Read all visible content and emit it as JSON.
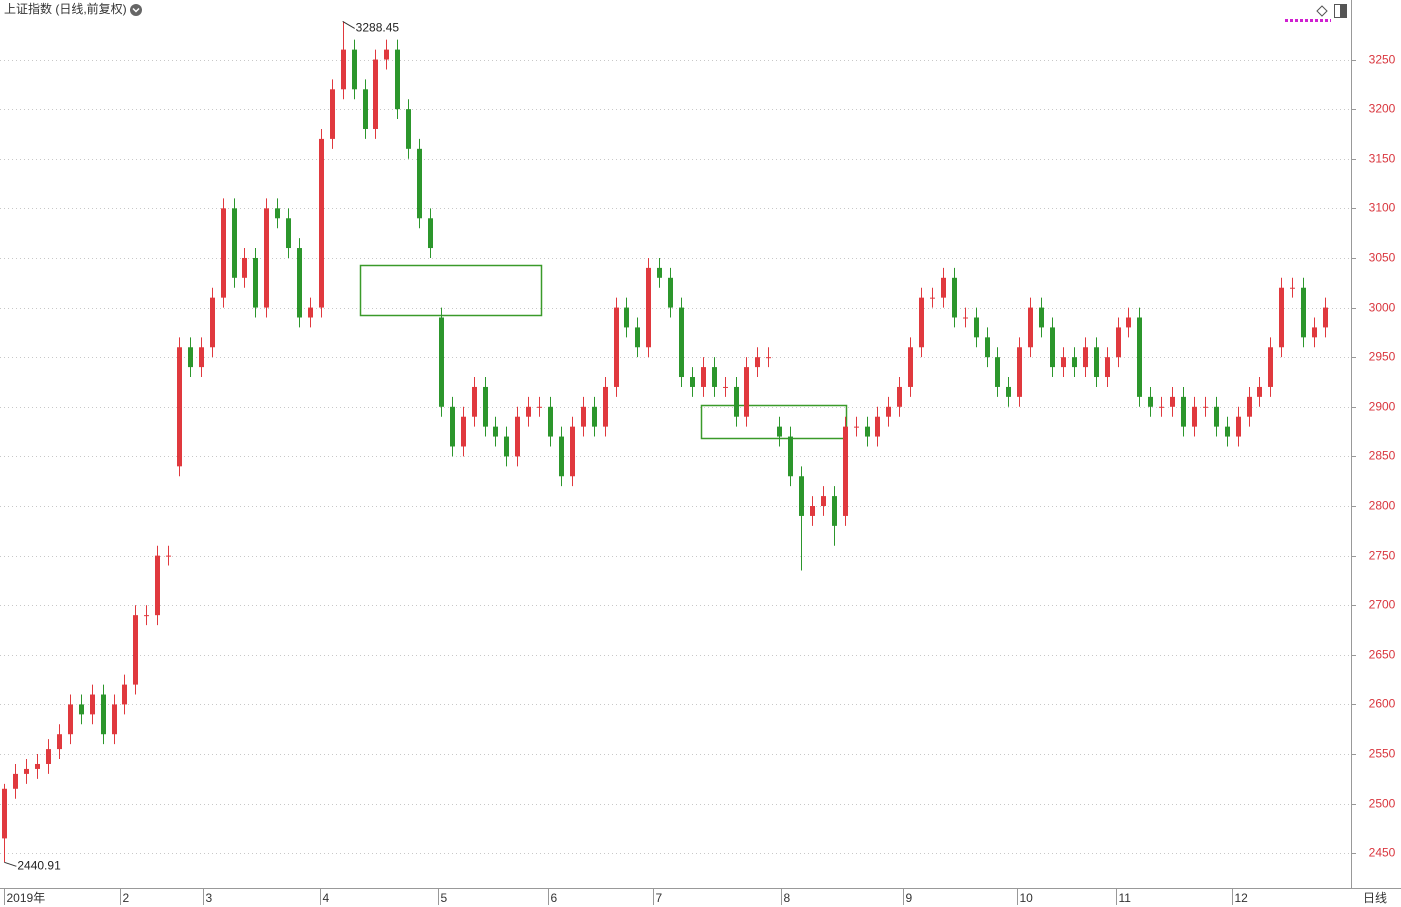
{
  "chart_data": {
    "type": "candlestick",
    "title": "上证指数 (日线,前复权)",
    "period_label": "日线",
    "up_color": "#e0393e",
    "down_color": "#2c962c",
    "axis_label_color": "#d9363e",
    "grid": true,
    "ylim": [
      2415,
      3310
    ],
    "yticks": [
      2450,
      2500,
      2550,
      2600,
      2650,
      2700,
      2750,
      2800,
      2850,
      2900,
      2950,
      3000,
      3050,
      3100,
      3150,
      3200,
      3250
    ],
    "xlim": [
      -0.4,
      123.3
    ],
    "xticks": [
      {
        "value": 0,
        "label": "2019年"
      },
      {
        "value": 10.6,
        "label": "2"
      },
      {
        "value": 18.2,
        "label": "3"
      },
      {
        "value": 28.9,
        "label": "4"
      },
      {
        "value": 39.7,
        "label": "5"
      },
      {
        "value": 49.8,
        "label": "6"
      },
      {
        "value": 59.4,
        "label": "7"
      },
      {
        "value": 71.2,
        "label": "8"
      },
      {
        "value": 82.3,
        "label": "9"
      },
      {
        "value": 92.8,
        "label": "10"
      },
      {
        "value": 101.9,
        "label": "11"
      },
      {
        "value": 112.5,
        "label": "12"
      }
    ],
    "annotations": [
      {
        "value": 3288.45,
        "label": "3288.45"
      },
      {
        "value": 2440.91,
        "label": "2440.91"
      }
    ],
    "open": [
      2465,
      2515,
      2530,
      2535,
      2540,
      2555,
      2570,
      2600,
      2590,
      2610,
      2570,
      2600,
      2620,
      2690,
      2690,
      2750,
      2840,
      2960,
      2940,
      2960,
      3010,
      3100,
      3030,
      3050,
      3000,
      3100,
      3090,
      3060,
      2990,
      3000,
      3170,
      3220,
      3260,
      3220,
      3180,
      3250,
      3260,
      3200,
      3160,
      3090,
      2990,
      2900,
      2860,
      2890,
      2920,
      2880,
      2870,
      2850,
      2890,
      2900,
      2900,
      2870,
      2830,
      2880,
      2900,
      2880,
      2920,
      3000,
      2980,
      2960,
      3040,
      3030,
      3000,
      2930,
      2920,
      2940,
      2920,
      2920,
      2890,
      2940,
      2950,
      2880,
      2870,
      2830,
      2790,
      2800,
      2810,
      2790,
      2880,
      2880,
      2870,
      2890,
      2900,
      2920,
      2960,
      3010,
      3010,
      3030,
      2990,
      2990,
      2970,
      2950,
      2920,
      2910,
      2960,
      3000,
      2980,
      2940,
      2950,
      2940,
      2960,
      2930,
      2950,
      2980,
      2990,
      2910,
      2900,
      2900,
      2910,
      2880,
      2900,
      2900,
      2880,
      2870,
      2890,
      2910,
      2920,
      2960,
      3020,
      3020,
      2970,
      2980
    ],
    "high": [
      2520,
      2540,
      2545,
      2550,
      2565,
      2580,
      2610,
      2610,
      2620,
      2620,
      2610,
      2630,
      2700,
      2700,
      2760,
      2760,
      2970,
      2970,
      2970,
      3020,
      3110,
      3110,
      3060,
      3060,
      3110,
      3110,
      3100,
      3070,
      3010,
      3180,
      3230,
      3288.45,
      3270,
      3230,
      3260,
      3270,
      3270,
      3210,
      3170,
      3100,
      3000,
      2910,
      2900,
      2930,
      2930,
      2890,
      2880,
      2900,
      2910,
      2910,
      2910,
      2880,
      2890,
      2910,
      2910,
      2930,
      3010,
      3010,
      2990,
      3050,
      3050,
      3040,
      3010,
      2940,
      2950,
      2950,
      2930,
      2930,
      2950,
      2960,
      2960,
      2890,
      2880,
      2840,
      2810,
      2820,
      2820,
      2890,
      2890,
      2890,
      2900,
      2910,
      2930,
      2970,
      3020,
      3020,
      3040,
      3040,
      3000,
      3000,
      2980,
      2960,
      2930,
      2970,
      3010,
      3010,
      2990,
      2960,
      2960,
      2970,
      2970,
      2960,
      2990,
      3000,
      3000,
      2920,
      2910,
      2920,
      2920,
      2910,
      2910,
      2910,
      2890,
      2900,
      2920,
      2930,
      2970,
      3030,
      3030,
      3030,
      2990,
      3010
    ],
    "low": [
      2440.91,
      2505,
      2520,
      2525,
      2530,
      2545,
      2560,
      2580,
      2580,
      2560,
      2560,
      2590,
      2610,
      2680,
      2680,
      2740,
      2830,
      2930,
      2930,
      2950,
      3000,
      3020,
      3020,
      2990,
      2990,
      3080,
      3050,
      2980,
      2980,
      2990,
      3160,
      3210,
      3210,
      3170,
      3170,
      3240,
      3190,
      3150,
      3080,
      3050,
      2890,
      2850,
      2850,
      2880,
      2870,
      2860,
      2840,
      2840,
      2880,
      2890,
      2860,
      2820,
      2820,
      2870,
      2870,
      2870,
      2910,
      2970,
      2950,
      2950,
      3020,
      2990,
      2920,
      2910,
      2910,
      2910,
      2910,
      2880,
      2880,
      2930,
      2940,
      2860,
      2820,
      2735,
      2780,
      2790,
      2760,
      2780,
      2870,
      2860,
      2860,
      2880,
      2890,
      2910,
      2950,
      3000,
      3000,
      2980,
      2980,
      2960,
      2940,
      2910,
      2900,
      2900,
      2950,
      2970,
      2930,
      2930,
      2930,
      2930,
      2920,
      2920,
      2940,
      2970,
      2900,
      2890,
      2890,
      2890,
      2870,
      2870,
      2890,
      2870,
      2860,
      2860,
      2880,
      2900,
      2910,
      2950,
      3010,
      2960,
      2960,
      2970
    ],
    "close": [
      2515,
      2530,
      2535,
      2540,
      2555,
      2570,
      2600,
      2590,
      2610,
      2570,
      2600,
      2620,
      2690,
      2690,
      2750,
      2750,
      2960,
      2940,
      2960,
      3010,
      3100,
      3030,
      3050,
      3000,
      3100,
      3090,
      3060,
      2990,
      3000,
      3170,
      3220,
      3260,
      3220,
      3180,
      3250,
      3260,
      3200,
      3160,
      3090,
      3060,
      2900,
      2860,
      2890,
      2920,
      2880,
      2870,
      2850,
      2890,
      2900,
      2900,
      2870,
      2830,
      2880,
      2900,
      2880,
      2920,
      3000,
      2980,
      2960,
      3040,
      3030,
      3000,
      2930,
      2920,
      2940,
      2920,
      2920,
      2890,
      2940,
      2950,
      2950,
      2870,
      2830,
      2790,
      2800,
      2810,
      2780,
      2880,
      2880,
      2870,
      2890,
      2900,
      2920,
      2960,
      3010,
      3010,
      3030,
      2990,
      2990,
      2970,
      2950,
      2920,
      2910,
      2960,
      3000,
      2980,
      2940,
      2950,
      2940,
      2960,
      2930,
      2950,
      2980,
      2990,
      2910,
      2900,
      2900,
      2910,
      2880,
      2900,
      2900,
      2880,
      2870,
      2890,
      2910,
      2920,
      2960,
      3020,
      3020,
      2970,
      2980,
      3000
    ]
  }
}
